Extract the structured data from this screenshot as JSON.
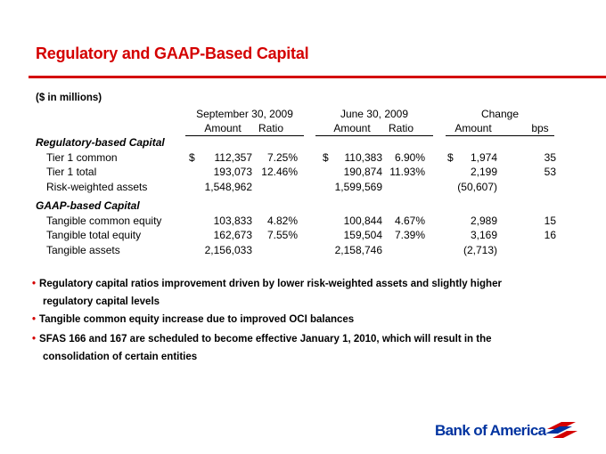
{
  "title": "Regulatory and GAAP-Based Capital",
  "units": "($ in millions)",
  "table": {
    "period_headers": [
      "September 30, 2009",
      "June 30, 2009",
      "Change"
    ],
    "sub_headers": [
      "Amount",
      "Ratio",
      "Amount",
      "Ratio",
      "Amount",
      "bps"
    ],
    "sections": [
      {
        "label": "Regulatory-based Capital",
        "rows": [
          {
            "label": "Tier 1 common",
            "cur": "$",
            "sep_amt": "112,357",
            "sep_ratio": "7.25%",
            "jun_cur": "$",
            "jun_amt": "110,383",
            "jun_ratio": "6.90%",
            "chg_cur": "$",
            "chg_amt": "1,974",
            "bps": "35"
          },
          {
            "label": "Tier 1 total",
            "sep_amt": "193,073",
            "sep_ratio": "12.46%",
            "jun_amt": "190,874",
            "jun_ratio": "11.93%",
            "chg_amt": "2,199",
            "bps": "53"
          },
          {
            "label": "Risk-weighted assets",
            "sep_amt": "1,548,962",
            "jun_amt": "1,599,569",
            "chg_amt": "(50,607)"
          }
        ]
      },
      {
        "label": "GAAP-based Capital",
        "rows": [
          {
            "label": "Tangible common equity",
            "sep_amt": "103,833",
            "sep_ratio": "4.82%",
            "jun_amt": "100,844",
            "jun_ratio": "4.67%",
            "chg_amt": "2,989",
            "bps": "15"
          },
          {
            "label": "Tangible total equity",
            "sep_amt": "162,673",
            "sep_ratio": "7.55%",
            "jun_amt": "159,504",
            "jun_ratio": "7.39%",
            "chg_amt": "3,169",
            "bps": "16"
          },
          {
            "label": "Tangible assets",
            "sep_amt": "2,156,033",
            "jun_amt": "2,158,746",
            "chg_amt": "(2,713)"
          }
        ]
      }
    ]
  },
  "bullets": [
    {
      "lines": [
        "Regulatory capital ratios improvement driven by lower risk-weighted assets and slightly higher",
        "regulatory capital levels"
      ]
    },
    {
      "lines": [
        "Tangible common equity increase due to improved OCI balances"
      ]
    },
    {
      "lines": [
        "SFAS 166 and 167 are scheduled to become effective January 1, 2010, which will result in the",
        "consolidation of certain entities"
      ]
    }
  ],
  "logo": {
    "text": "Bank of America",
    "color": "#0033a0",
    "accent": "#d40000"
  },
  "colors": {
    "title": "#d40000"
  }
}
